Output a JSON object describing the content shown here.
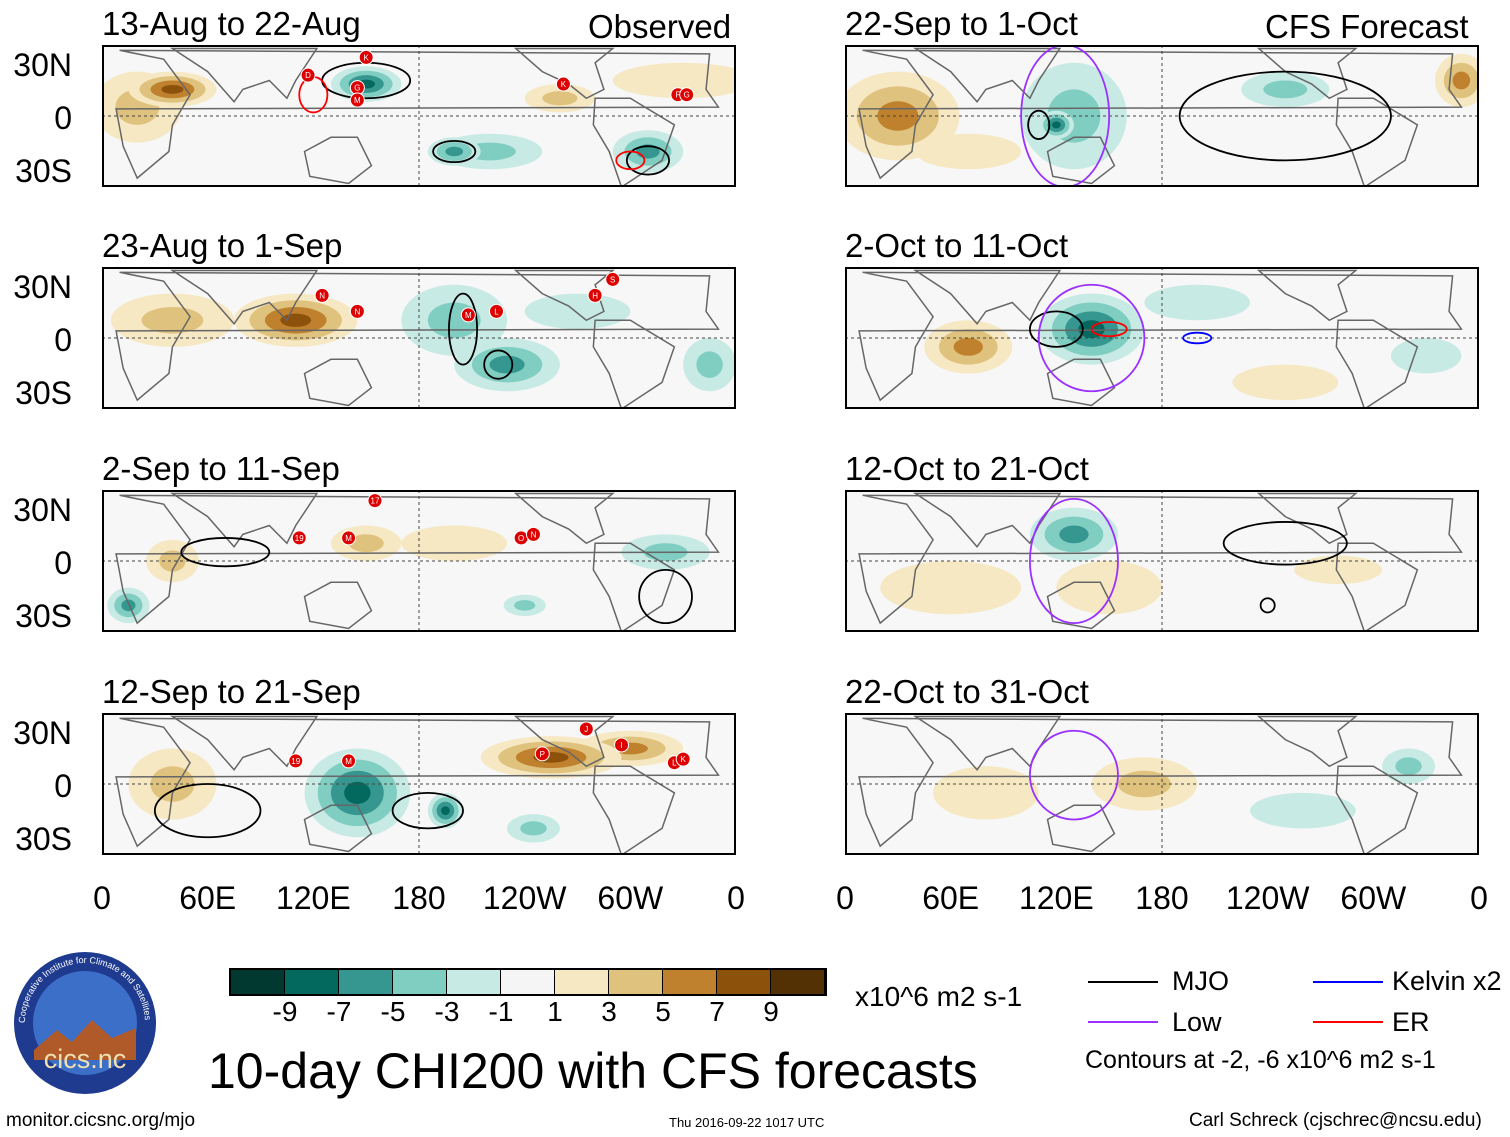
{
  "header": {
    "left_label": "Observed",
    "right_label": "CFS Forecast"
  },
  "latitude_labels": [
    "30N",
    "0",
    "30S"
  ],
  "longitude_labels": [
    "0",
    "60E",
    "120E",
    "180",
    "120W",
    "60W",
    "0"
  ],
  "colorbar": {
    "ticks": [
      "-9",
      "-7",
      "-5",
      "-3",
      "-1",
      "1",
      "3",
      "5",
      "7",
      "9"
    ],
    "colors": [
      "#01382f",
      "#03695f",
      "#35978f",
      "#80cdc1",
      "#c7eae5",
      "#f5f5f5",
      "#f6e8c3",
      "#dfc27d",
      "#bf812d",
      "#8c510a",
      "#543005"
    ],
    "units": "x10^6 m2 s-1"
  },
  "legend": {
    "mjo": {
      "label": "MJO",
      "color": "#000000"
    },
    "low": {
      "label": "Low",
      "color": "#9b30ff"
    },
    "kelvin": {
      "label": "Kelvin x2",
      "color": "#0000ff"
    },
    "er": {
      "label": "ER",
      "color": "#ff0000"
    },
    "note": "Contours at -2, -6 x10^6 m2 s-1"
  },
  "title": "10-day CHI200 with CFS forecasts",
  "footer": {
    "url": "monitor.cicsnc.org/mjo",
    "timestamp": "Thu 2016-09-22 1017 UTC",
    "credit": "Carl Schreck (cjschrec@ncsu.edu)"
  },
  "logo": {
    "text": "cics.nc",
    "ring_text": "Cooperative Institute for Climate and Satellites"
  },
  "panels": [
    {
      "title": "13-Aug to 22-Aug",
      "column": "observed",
      "anomalies": [
        [
          40,
          15,
          25,
          10,
          6
        ],
        [
          20,
          5,
          25,
          20,
          3
        ],
        [
          150,
          18,
          20,
          10,
          -7
        ],
        [
          200,
          -20,
          15,
          8,
          -5
        ],
        [
          310,
          -20,
          20,
          12,
          -5
        ],
        [
          220,
          -20,
          30,
          10,
          -3
        ],
        [
          260,
          10,
          20,
          8,
          3
        ],
        [
          330,
          20,
          40,
          10,
          1
        ]
      ],
      "contours": [
        [
          "mjo",
          150,
          20,
          25,
          10
        ],
        [
          "mjo",
          200,
          -20,
          12,
          6
        ],
        [
          "mjo",
          310,
          -25,
          12,
          8
        ],
        [
          "er",
          300,
          -25,
          8,
          5
        ],
        [
          "er",
          120,
          12,
          8,
          10
        ]
      ],
      "storms": [
        [
          "D",
          117,
          23
        ],
        [
          "K",
          150,
          33
        ],
        [
          "G",
          145,
          16
        ],
        [
          "M",
          145,
          9
        ],
        [
          "K",
          262,
          18
        ],
        [
          "F",
          327,
          12
        ],
        [
          "G",
          332,
          12
        ]
      ]
    },
    {
      "title": "23-Aug to 1-Sep",
      "column": "observed",
      "anomalies": [
        [
          110,
          10,
          35,
          15,
          6
        ],
        [
          40,
          10,
          35,
          15,
          3
        ],
        [
          230,
          -15,
          30,
          15,
          -5
        ],
        [
          200,
          10,
          30,
          20,
          -3
        ],
        [
          270,
          15,
          30,
          10,
          -1
        ],
        [
          345,
          -15,
          15,
          15,
          -3
        ]
      ],
      "contours": [
        [
          "mjo",
          225,
          -15,
          8,
          8
        ],
        [
          "mjo",
          205,
          5,
          8,
          20
        ]
      ],
      "storms": [
        [
          "N",
          125,
          24
        ],
        [
          "N",
          145,
          15
        ],
        [
          "M",
          208,
          13
        ],
        [
          "L",
          224,
          15
        ],
        [
          "H",
          280,
          24
        ],
        [
          "S",
          290,
          33
        ]
      ]
    },
    {
      "title": "2-Sep to 11-Sep",
      "column": "observed",
      "anomalies": [
        [
          15,
          -25,
          12,
          10,
          -5
        ],
        [
          40,
          0,
          15,
          12,
          3
        ],
        [
          150,
          10,
          20,
          10,
          3
        ],
        [
          200,
          10,
          30,
          10,
          1
        ],
        [
          320,
          5,
          25,
          10,
          -3
        ],
        [
          240,
          -25,
          12,
          6,
          -3
        ]
      ],
      "contours": [
        [
          "mjo",
          70,
          5,
          25,
          8
        ],
        [
          "mjo",
          320,
          -20,
          15,
          15
        ]
      ],
      "storms": [
        [
          "19",
          112,
          13
        ],
        [
          "M",
          140,
          13
        ],
        [
          "17",
          155,
          34
        ],
        [
          "O",
          238,
          13
        ],
        [
          "N",
          245,
          15
        ]
      ]
    },
    {
      "title": "12-Sep to 21-Sep",
      "column": "observed",
      "anomalies": [
        [
          145,
          -5,
          30,
          25,
          -7
        ],
        [
          195,
          -15,
          10,
          10,
          -7
        ],
        [
          255,
          15,
          40,
          12,
          7
        ],
        [
          300,
          20,
          30,
          10,
          5
        ],
        [
          40,
          0,
          25,
          20,
          3
        ],
        [
          245,
          -25,
          15,
          8,
          -3
        ]
      ],
      "contours": [
        [
          "mjo",
          185,
          -15,
          20,
          10
        ],
        [
          "mjo",
          60,
          -15,
          30,
          15
        ]
      ],
      "storms": [
        [
          "19",
          110,
          13
        ],
        [
          "M",
          140,
          13
        ],
        [
          "P",
          250,
          17
        ],
        [
          "J",
          275,
          31
        ],
        [
          "I",
          295,
          22
        ],
        [
          "L",
          325,
          12
        ],
        [
          "K",
          330,
          14
        ]
      ]
    },
    {
      "title": "22-Sep to 1-Oct",
      "column": "forecast",
      "anomalies": [
        [
          30,
          0,
          35,
          25,
          5
        ],
        [
          350,
          20,
          15,
          15,
          5
        ],
        [
          130,
          0,
          30,
          30,
          -3
        ],
        [
          250,
          15,
          25,
          10,
          -3
        ],
        [
          120,
          -5,
          10,
          8,
          -7
        ],
        [
          70,
          -20,
          30,
          10,
          1
        ]
      ],
      "contours": [
        [
          "mjo",
          110,
          -5,
          6,
          8
        ],
        [
          "mjo",
          250,
          0,
          60,
          25
        ],
        [
          "low",
          125,
          0,
          25,
          40
        ]
      ],
      "storms": []
    },
    {
      "title": "2-Oct to 11-Oct",
      "column": "forecast",
      "anomalies": [
        [
          140,
          5,
          30,
          20,
          -7
        ],
        [
          70,
          -5,
          25,
          15,
          5
        ],
        [
          200,
          20,
          30,
          10,
          -1
        ],
        [
          250,
          -25,
          30,
          10,
          1
        ],
        [
          330,
          -10,
          20,
          10,
          -1
        ]
      ],
      "contours": [
        [
          "mjo",
          120,
          5,
          15,
          10
        ],
        [
          "er",
          150,
          5,
          10,
          4
        ],
        [
          "kelvin",
          200,
          0,
          8,
          3
        ],
        [
          "low",
          140,
          0,
          30,
          30
        ]
      ],
      "storms": []
    },
    {
      "title": "12-Oct to 21-Oct",
      "column": "forecast",
      "anomalies": [
        [
          130,
          15,
          25,
          15,
          -5
        ],
        [
          60,
          -15,
          40,
          15,
          1
        ],
        [
          150,
          -15,
          30,
          15,
          1
        ],
        [
          280,
          -5,
          25,
          8,
          1
        ]
      ],
      "contours": [
        [
          "mjo",
          250,
          10,
          35,
          12
        ],
        [
          "mjo",
          240,
          -25,
          4,
          4
        ],
        [
          "low",
          130,
          0,
          25,
          35
        ]
      ],
      "storms": []
    },
    {
      "title": "22-Oct to 31-Oct",
      "column": "forecast",
      "anomalies": [
        [
          170,
          0,
          30,
          15,
          3
        ],
        [
          80,
          -5,
          30,
          15,
          1
        ],
        [
          320,
          10,
          15,
          10,
          -3
        ],
        [
          260,
          -15,
          30,
          10,
          -1
        ]
      ],
      "contours": [
        [
          "low",
          130,
          5,
          25,
          25
        ]
      ],
      "storms": []
    }
  ]
}
